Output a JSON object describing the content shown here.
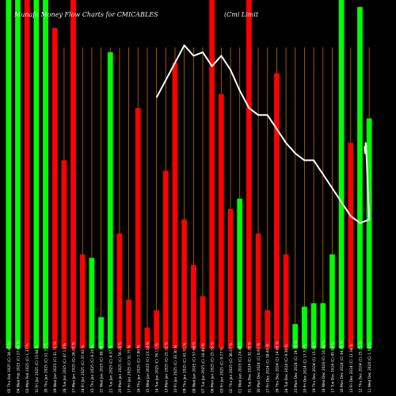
{
  "chart_data": {
    "type": "bar",
    "title": "Munafa Money Flow Charts for CMICABLES",
    "subtitle": "(Cmi Limit",
    "colors": {
      "up": "#00ff00",
      "down": "#ff0000",
      "line": "#ffffff",
      "grid": "#c46a10",
      "background": "#000000",
      "label": "#ffffff"
    },
    "ylim": [
      0,
      100
    ],
    "grid": "vertical",
    "categories": [
      "05 Thu Feb 2025 (C) 34.47 %",
      "04 Wed Feb 2025 (C) 27.66 %",
      "03 Mon Feb 2025 (C) 1.37 %",
      "31 Fri Jan 2025 (C) 15.84 %",
      "30 Thu Jan 2025 (C) 51.31 %",
      "29 Wed Jan 2025 (C) 31.71 %",
      "28 Tue Jan 2025 (C) 47.13 %",
      "27 Mon Jan 2025 (C) 26.87 %",
      "24 Fri Jan 2025 (C) 37.83 %",
      "23 Thu Jan 2025 (C) 8.24 %",
      "22 Wed Jan 2025 (C) 38.39 %",
      "21 Tue Jan 2025 (C) 4.37 %",
      "20 Mon Jan 2025 (C) 56.19 %",
      "17 Fri Jan 2025 (C) 31.75 %",
      "16 Thu Jan 2025 (C) 7.80 %",
      "15 Wed Jan 2025 (C) 23.14 %",
      "14 Tue Jan 2025 (C) 76.11 %",
      "13 Mon Jan 2025 (C) 25.52 %",
      "10 Fri Jan 2025 (C) 33.30 %",
      "09 Thu Jan 2025 (C) 41.91 %",
      "08 Wed Jan 2025 (C) 57.68 %",
      "07 Tue Jan 2025 (C) 18.49 %",
      "06 Mon Jan 2025 (C) 25.55 %",
      "03 Fri Jan 2025 (C) 9.77 %",
      "02 Thu Jan 2025 (C) 36.07 %",
      "01 Wed Jan 2025 (C) 24.49 %",
      "31 Tue Dec 2024 (C) 32.29 %",
      "30 Mon Dec 2024 (C) 8.91 %",
      "27 Fri Dec 2024 (C) 58.65 %",
      "26 Thu Dec 2024 (C) 14.65 %",
      "24 Tue Dec 2024 (C) 9.38 %",
      "23 Mon Dec 2024 (C) 19.74 %",
      "20 Fri Dec 2024 (C) 17.31 %",
      "19 Thu Dec 2024 (C) 15.04 %",
      "18 Wed Dec 2024 (C) 16.42 %",
      "17 Tue Dec 2024 (C) 45.83 %",
      "16 Mon Dec 2024 (C) 44.05 %",
      "13 Fri Dec 2024 (C) 12.34 %",
      "12 Thu Dec 2024 (C) 25.21 %",
      "11 Wed Dec 2024 (C) 1.58 %"
    ],
    "bars": [
      {
        "direction": "up",
        "value": 100
      },
      {
        "direction": "up",
        "value": 100
      },
      {
        "direction": "down",
        "value": 100
      },
      {
        "direction": "up",
        "value": 100
      },
      {
        "direction": "up",
        "value": 100
      },
      {
        "direction": "down",
        "value": 92
      },
      {
        "direction": "down",
        "value": 54
      },
      {
        "direction": "down",
        "value": 100
      },
      {
        "direction": "down",
        "value": 27
      },
      {
        "direction": "up",
        "value": 26
      },
      {
        "direction": "up",
        "value": 9
      },
      {
        "direction": "up",
        "value": 85
      },
      {
        "direction": "down",
        "value": 33
      },
      {
        "direction": "down",
        "value": 14
      },
      {
        "direction": "down",
        "value": 69
      },
      {
        "direction": "down",
        "value": 6
      },
      {
        "direction": "down",
        "value": 11
      },
      {
        "direction": "down",
        "value": 51
      },
      {
        "direction": "down",
        "value": 82
      },
      {
        "direction": "down",
        "value": 37
      },
      {
        "direction": "down",
        "value": 24
      },
      {
        "direction": "down",
        "value": 15
      },
      {
        "direction": "down",
        "value": 100
      },
      {
        "direction": "down",
        "value": 73
      },
      {
        "direction": "down",
        "value": 40
      },
      {
        "direction": "up",
        "value": 43
      },
      {
        "direction": "down",
        "value": 100
      },
      {
        "direction": "down",
        "value": 33
      },
      {
        "direction": "down",
        "value": 11
      },
      {
        "direction": "down",
        "value": 79
      },
      {
        "direction": "down",
        "value": 27
      },
      {
        "direction": "up",
        "value": 7
      },
      {
        "direction": "up",
        "value": 12
      },
      {
        "direction": "up",
        "value": 13
      },
      {
        "direction": "up",
        "value": 13
      },
      {
        "direction": "up",
        "value": 27
      },
      {
        "direction": "up",
        "value": 100
      },
      {
        "direction": "down",
        "value": 59
      },
      {
        "direction": "up",
        "value": 98
      },
      {
        "direction": "up",
        "value": 66
      }
    ],
    "line": [
      null,
      null,
      null,
      null,
      null,
      null,
      null,
      null,
      null,
      null,
      null,
      null,
      null,
      null,
      null,
      null,
      72,
      77,
      82,
      87,
      84,
      85,
      81,
      84,
      80,
      74,
      69,
      67,
      67,
      63,
      59,
      56,
      54,
      54,
      50,
      46,
      42,
      38,
      36,
      37
    ],
    "line_extra": [
      40,
      43,
      46,
      49,
      52,
      55,
      58,
      59,
      56,
      57,
      58
    ]
  }
}
